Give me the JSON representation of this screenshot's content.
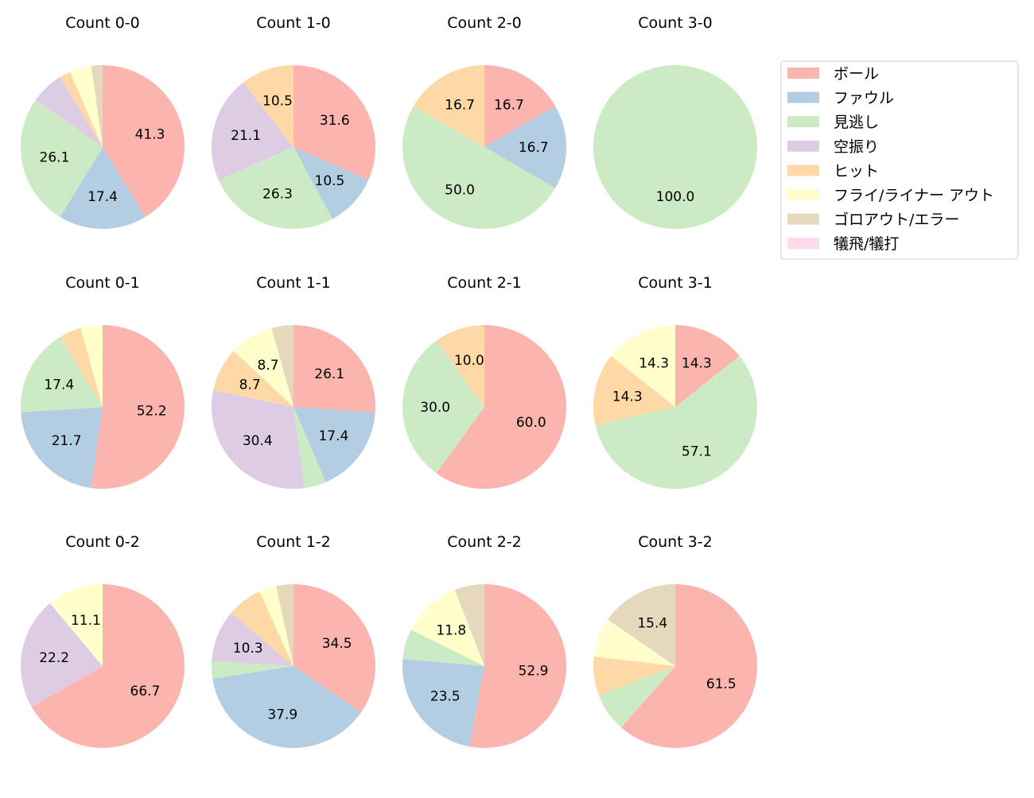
{
  "chart_data": [
    {
      "type": "pie",
      "title": "Count 0-0",
      "values": [
        41.3,
        17.4,
        26.1,
        6.5,
        2.2,
        4.3,
        2.2,
        0
      ]
    },
    {
      "type": "pie",
      "title": "Count 1-0",
      "values": [
        31.6,
        10.5,
        26.3,
        21.1,
        10.5,
        0,
        0,
        0
      ]
    },
    {
      "type": "pie",
      "title": "Count 2-0",
      "values": [
        16.7,
        16.7,
        50.0,
        0,
        16.7,
        0,
        0,
        0
      ]
    },
    {
      "type": "pie",
      "title": "Count 3-0",
      "values": [
        0,
        0,
        100.0,
        0,
        0,
        0,
        0,
        0
      ]
    },
    {
      "type": "pie",
      "title": "Count 0-1",
      "values": [
        52.2,
        21.7,
        17.4,
        0,
        4.3,
        4.3,
        0,
        0
      ]
    },
    {
      "type": "pie",
      "title": "Count 1-1",
      "values": [
        26.1,
        17.4,
        4.3,
        30.4,
        8.7,
        8.7,
        4.3,
        0
      ]
    },
    {
      "type": "pie",
      "title": "Count 2-1",
      "values": [
        60.0,
        0,
        30.0,
        0,
        10.0,
        0,
        0,
        0
      ]
    },
    {
      "type": "pie",
      "title": "Count 3-1",
      "values": [
        14.3,
        0,
        57.1,
        0,
        14.3,
        14.3,
        0,
        0
      ]
    },
    {
      "type": "pie",
      "title": "Count 0-2",
      "values": [
        66.7,
        0,
        0,
        22.2,
        0,
        11.1,
        0,
        0
      ]
    },
    {
      "type": "pie",
      "title": "Count 1-2",
      "values": [
        34.5,
        37.9,
        3.4,
        10.3,
        6.9,
        3.4,
        3.4,
        0
      ]
    },
    {
      "type": "pie",
      "title": "Count 2-2",
      "values": [
        52.9,
        23.5,
        5.9,
        0,
        0,
        11.8,
        5.9,
        0
      ]
    },
    {
      "type": "pie",
      "title": "Count 3-2",
      "values": [
        61.5,
        0,
        7.7,
        0,
        7.7,
        7.7,
        15.4,
        0
      ]
    }
  ],
  "legend": {
    "placement": "top-right",
    "labels": [
      "ボール",
      "ファウル",
      "見逃し",
      "空振り",
      "ヒット",
      "フライ/ライナー アウト",
      "ゴロアウト/エラー",
      "犠飛/犠打"
    ],
    "colors": [
      "#fbb4ae",
      "#b3cde3",
      "#ccebc5",
      "#decbe4",
      "#fed9a6",
      "#ffffcc",
      "#e5d8bd",
      "#fddaec"
    ]
  },
  "label_threshold": 8
}
